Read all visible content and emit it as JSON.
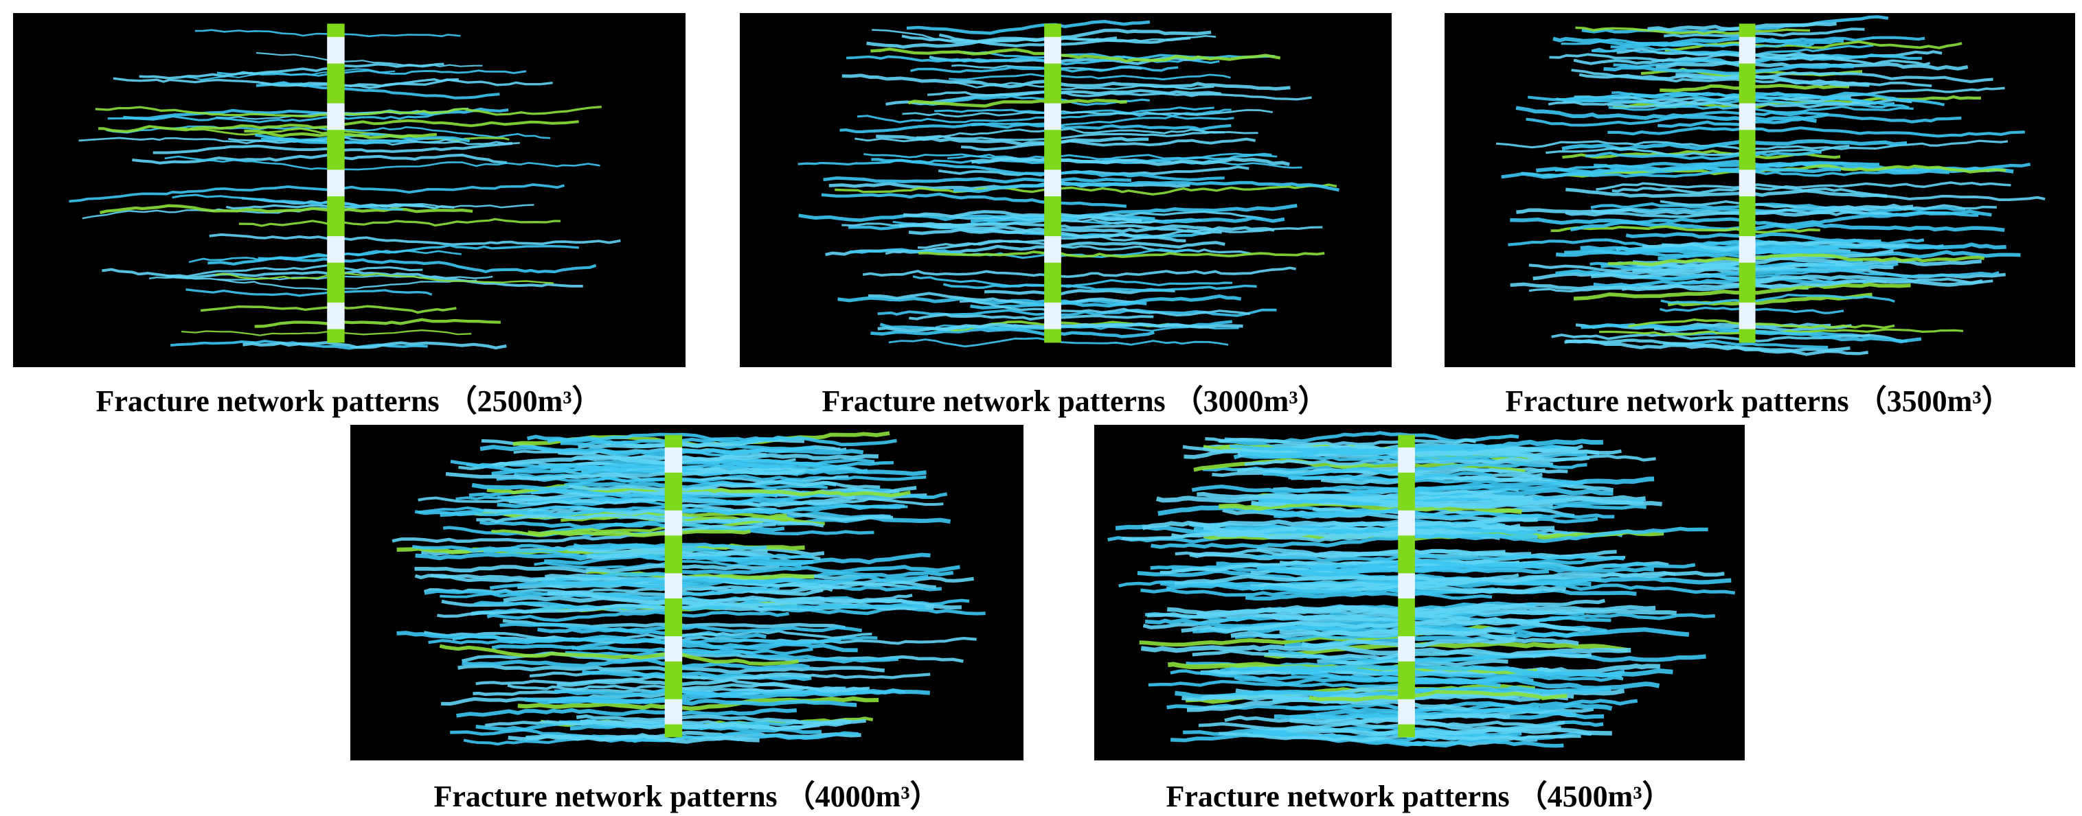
{
  "panels": [
    {
      "caption": "Fracture network patterns （2500m³）"
    },
    {
      "caption": "Fracture network patterns （3000m³）"
    },
    {
      "caption": "Fracture network patterns （3500m³）"
    },
    {
      "caption": "Fracture network patterns （4000m³）"
    },
    {
      "caption": "Fracture network patterns （4500m³）"
    }
  ]
}
